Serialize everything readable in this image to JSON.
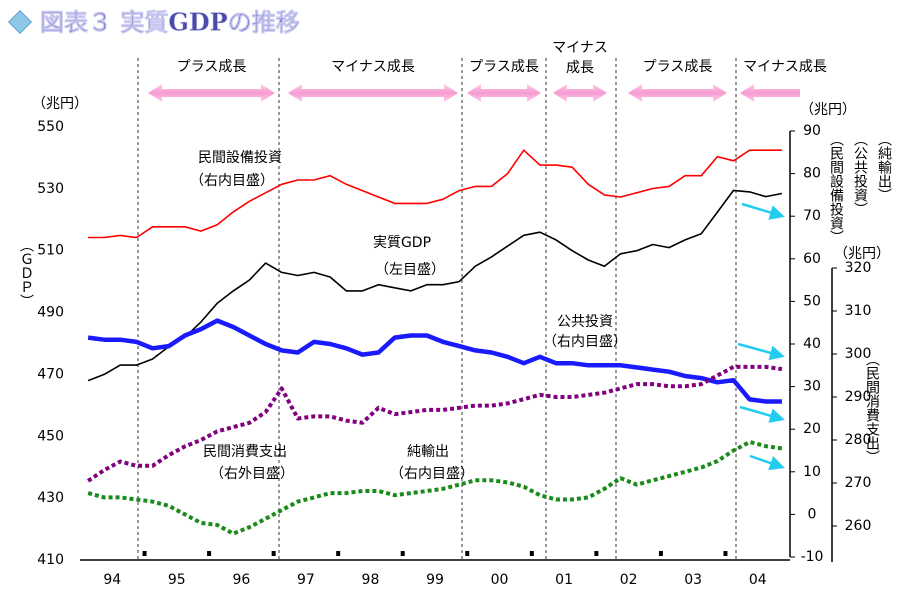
{
  "chart_data": {
    "type": "line",
    "title": "図表３ 実質GDPの推移",
    "phases": [
      [
        "プラス成長"
      ],
      [
        "マイナス成長"
      ],
      [
        "プラス成長"
      ],
      [
        "マイナス",
        "成長"
      ],
      [
        "プラス成長"
      ],
      [
        "マイナス成長"
      ]
    ],
    "categories": [
      null,
      "94",
      null,
      null,
      null,
      "95",
      null,
      null,
      null,
      "96",
      null,
      null,
      null,
      "97",
      null,
      null,
      null,
      "98",
      null,
      null,
      null,
      "99",
      null,
      null,
      null,
      "00",
      null,
      null,
      null,
      "01",
      null,
      null,
      null,
      "02",
      null,
      null,
      null,
      "03",
      null,
      null,
      null,
      "04",
      null,
      null
    ],
    "ylim": [
      410,
      550
    ],
    "yticks": [
      410,
      430,
      450,
      470,
      490,
      510,
      530,
      550
    ],
    "ylabel_unit": "（兆円）",
    "ylabel": "（ＧＤＰ）",
    "y2lim": [
      -10,
      90
    ],
    "y2ticks": [
      -10,
      0,
      10,
      20,
      30,
      40,
      50,
      60,
      70,
      80,
      90
    ],
    "y2label_unit": "（兆円）",
    "y2labels": [
      "（民間設備投資）",
      "（公共投資）",
      "（純輸出）"
    ],
    "y3lim": [
      260,
      320
    ],
    "y3ticks": [
      260,
      270,
      280,
      290,
      300,
      310,
      320
    ],
    "y3label_unit": "（兆円）",
    "y3label": "（民間消費支出）",
    "series": [
      {
        "name": "実質GDP",
        "scale_label": "（左目盛）",
        "color": "#000000",
        "style": "solid",
        "axis": "y",
        "values": [
          468,
          470,
          473,
          473,
          475,
          479,
          482,
          487,
          493,
          497,
          500.5,
          506,
          503,
          502,
          503,
          501.5,
          497,
          497,
          499,
          498,
          497,
          499,
          499,
          500,
          505,
          508,
          511.5,
          515,
          516,
          513.5,
          510,
          507,
          505,
          509,
          510,
          512,
          511,
          513.5,
          515.5,
          522.5,
          529.5,
          529,
          527.5,
          528.5
        ]
      },
      {
        "name": "民間設備投資",
        "scale_label": "（右内目盛）",
        "color": "#ff0000",
        "style": "solid",
        "axis": "y2",
        "values": [
          65,
          65,
          65.5,
          65,
          67.5,
          67.5,
          67.5,
          66.5,
          68,
          71,
          73.5,
          75.5,
          77.5,
          78.5,
          78.5,
          79.5,
          77.5,
          76,
          74.5,
          73,
          73,
          73,
          74,
          76,
          77,
          77,
          80,
          85.5,
          82,
          82,
          81.5,
          77.5,
          75,
          74.5,
          75.5,
          76.5,
          77,
          79.5,
          79.5,
          84,
          83,
          85.5,
          85.5,
          85.5
        ]
      },
      {
        "name": "公共投資",
        "scale_label": "（右内目盛）",
        "color": "#1a1aff",
        "style": "thick",
        "axis": "y2",
        "values": [
          41.5,
          41,
          41,
          40.5,
          39,
          39.5,
          42,
          43.5,
          45.5,
          44,
          42,
          40,
          38.5,
          38,
          40.5,
          40,
          39,
          37.5,
          38,
          41.5,
          42,
          42,
          40.5,
          39.5,
          38.5,
          38,
          37,
          35.5,
          37,
          35.5,
          35.5,
          35,
          35,
          35,
          34.5,
          34,
          33.5,
          32.5,
          32,
          31,
          31.5,
          27,
          26.5,
          26.5
        ]
      },
      {
        "name": "民間消費支出",
        "scale_label": "（右外目盛）",
        "color": "#800080",
        "style": "dotted",
        "axis": "y3",
        "values": [
          270.5,
          273,
          275,
          274,
          274,
          276.5,
          278.5,
          280,
          282,
          283,
          284,
          286.5,
          292,
          285,
          285.5,
          285.5,
          284.5,
          284,
          287.5,
          286,
          286.5,
          287,
          287,
          287.5,
          288,
          288,
          288.5,
          289.5,
          290.5,
          290,
          290,
          290.5,
          291,
          292,
          293,
          293,
          292.5,
          292.5,
          293,
          295,
          297,
          297,
          297,
          296.5
        ]
      },
      {
        "name": "純輸出",
        "scale_label": "（右内目盛）",
        "color": "#1a8a1a",
        "style": "dotted",
        "axis": "y2",
        "values": [
          5,
          4,
          4,
          3.5,
          3,
          2,
          0,
          -2,
          -2.5,
          -4.5,
          -3,
          -1,
          1,
          3,
          4,
          5,
          5,
          5.5,
          5.5,
          4.5,
          5,
          5.5,
          6,
          7,
          8,
          8,
          7.5,
          6.5,
          4.5,
          3.5,
          3.5,
          4,
          6,
          8.5,
          7,
          8,
          9,
          10,
          11,
          12.5,
          15,
          17,
          16,
          15.5
        ]
      }
    ]
  }
}
